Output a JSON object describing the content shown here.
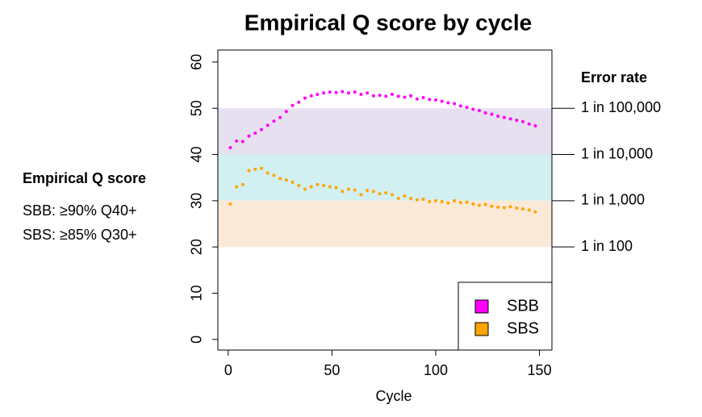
{
  "chart_data": {
    "type": "scatter",
    "title": "Empirical Q score by cycle",
    "x_label": "Cycle",
    "y2_label": "Error rate",
    "annotations": [
      "Empirical Q score",
      "SBB: ≥90% Q40+",
      "SBS: ≥85% Q30+"
    ],
    "xlim": [
      -5,
      156
    ],
    "xticks": [
      0,
      50,
      100,
      150
    ],
    "ylim": [
      -2.3,
      62.6
    ],
    "yticks": [
      0,
      10,
      20,
      30,
      40,
      50,
      60
    ],
    "y2lim": [
      -2.3,
      62.6
    ],
    "y2ticks": [
      {
        "value": 50,
        "label": "1 in 100,000"
      },
      {
        "value": 40,
        "label": "1 in 10,000"
      },
      {
        "value": 30,
        "label": "1 in 1,000"
      },
      {
        "value": 20,
        "label": "1 in 100"
      }
    ],
    "bands": [
      {
        "from": 40,
        "to": 50,
        "color": "#e7e0f0"
      },
      {
        "from": 30,
        "to": 40,
        "color": "#d2eff1"
      },
      {
        "from": 20,
        "to": 30,
        "color": "#fbe9d8"
      }
    ],
    "x": [
      1,
      4,
      7,
      10,
      13,
      16,
      19,
      22,
      25,
      28,
      31,
      34,
      37,
      40,
      43,
      46,
      49,
      52,
      55,
      58,
      61,
      64,
      67,
      70,
      73,
      76,
      79,
      82,
      85,
      88,
      91,
      94,
      97,
      100,
      103,
      106,
      109,
      112,
      115,
      118,
      121,
      124,
      127,
      130,
      133,
      136,
      139,
      142,
      145,
      148
    ],
    "series": [
      {
        "name": "SBB",
        "color": "#ff00ff",
        "values": [
          41.5,
          42.9,
          42.8,
          44.0,
          44.6,
          45.4,
          46.3,
          47.2,
          48.0,
          49.3,
          50.6,
          51.3,
          52.2,
          52.7,
          53.0,
          53.3,
          53.5,
          53.4,
          53.6,
          53.3,
          53.5,
          53.0,
          53.3,
          52.7,
          52.8,
          52.6,
          53.0,
          52.6,
          52.4,
          52.7,
          52.0,
          52.3,
          51.9,
          51.8,
          51.5,
          51.2,
          51.0,
          50.5,
          50.2,
          49.8,
          49.5,
          49.0,
          48.7,
          48.3,
          48.0,
          47.7,
          47.4,
          47.1,
          46.6,
          46.2
        ]
      },
      {
        "name": "SBS",
        "color": "#ffa500",
        "values": [
          29.3,
          33.0,
          33.5,
          36.5,
          36.8,
          37.0,
          36.0,
          35.5,
          34.8,
          34.5,
          34.0,
          33.3,
          32.5,
          33.0,
          33.5,
          33.3,
          33.0,
          32.8,
          32.0,
          32.5,
          32.3,
          31.3,
          32.2,
          32.0,
          31.5,
          31.7,
          31.3,
          30.5,
          31.0,
          30.5,
          30.2,
          30.3,
          29.8,
          30.0,
          29.8,
          29.5,
          30.0,
          29.6,
          29.7,
          29.3,
          29.0,
          29.2,
          28.8,
          28.6,
          28.5,
          28.7,
          28.4,
          28.2,
          28.0,
          27.6
        ]
      }
    ]
  }
}
